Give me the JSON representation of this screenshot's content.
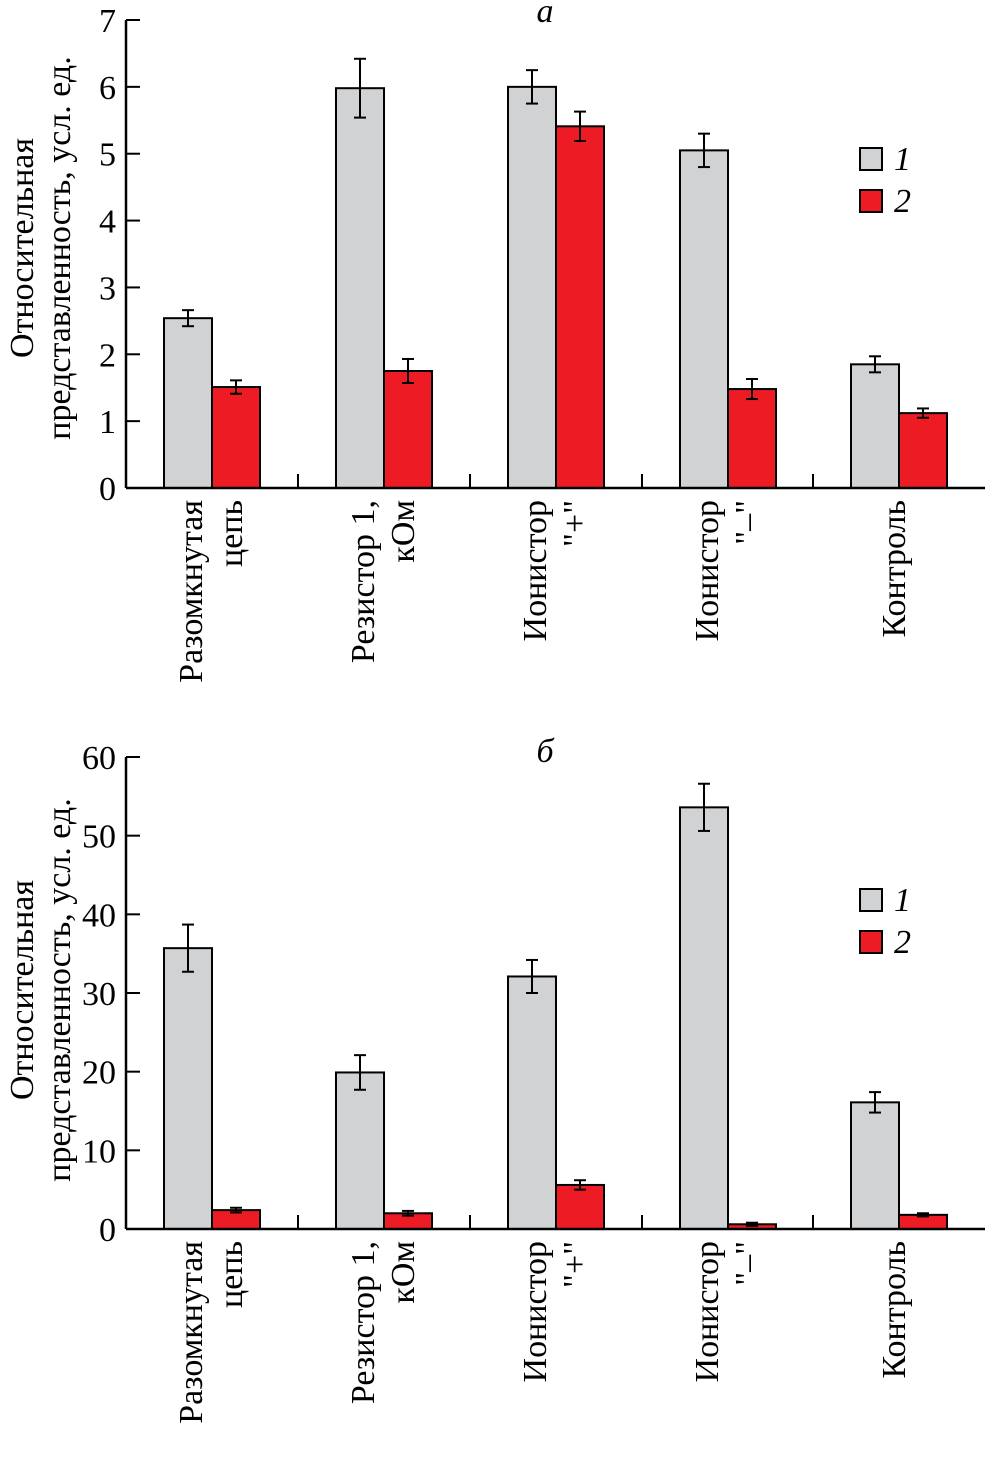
{
  "chart_data": [
    {
      "type": "bar",
      "title": "а",
      "ylabel": [
        "Относительная",
        "представленность, усл. ед."
      ],
      "xlabel": "",
      "ylim": [
        0,
        7
      ],
      "yticks": [
        0,
        1,
        2,
        3,
        4,
        5,
        6,
        7
      ],
      "categories": [
        [
          "Разомкнутая",
          "цепь"
        ],
        [
          "Резистор 1,",
          "кОм"
        ],
        [
          "Ионистор",
          "\"+\""
        ],
        [
          "Ионистор",
          "\"–\""
        ],
        [
          "Контроль"
        ]
      ],
      "legend_position": "right",
      "series": [
        {
          "name": "1",
          "color": "#d1d2d4",
          "values": [
            2.54,
            5.98,
            6.0,
            5.05,
            1.85
          ],
          "errors": [
            0.12,
            0.44,
            0.25,
            0.25,
            0.12
          ]
        },
        {
          "name": "2",
          "color": "#ed1c24",
          "values": [
            1.51,
            1.75,
            5.41,
            1.48,
            1.12
          ],
          "errors": [
            0.1,
            0.18,
            0.22,
            0.15,
            0.07
          ]
        }
      ]
    },
    {
      "type": "bar",
      "title": "б",
      "ylabel": [
        "Относительная",
        "представленность, усл. ед."
      ],
      "xlabel": "",
      "ylim": [
        0,
        60
      ],
      "yticks": [
        0,
        10,
        20,
        30,
        40,
        50,
        60
      ],
      "categories": [
        [
          "Разомкнутая",
          "цепь"
        ],
        [
          "Резистор 1,",
          "кОм"
        ],
        [
          "Ионистор",
          "\"+\""
        ],
        [
          "Ионистор",
          "\"–\""
        ],
        [
          "Контроль"
        ]
      ],
      "legend_position": "right",
      "series": [
        {
          "name": "1",
          "color": "#d1d2d4",
          "values": [
            35.7,
            19.9,
            32.1,
            53.6,
            16.1
          ],
          "errors": [
            3.0,
            2.2,
            2.1,
            3.0,
            1.3
          ]
        },
        {
          "name": "2",
          "color": "#ed1c24",
          "values": [
            2.4,
            2.0,
            5.6,
            0.6,
            1.8
          ],
          "errors": [
            0.3,
            0.3,
            0.6,
            0.2,
            0.2
          ]
        }
      ]
    }
  ]
}
